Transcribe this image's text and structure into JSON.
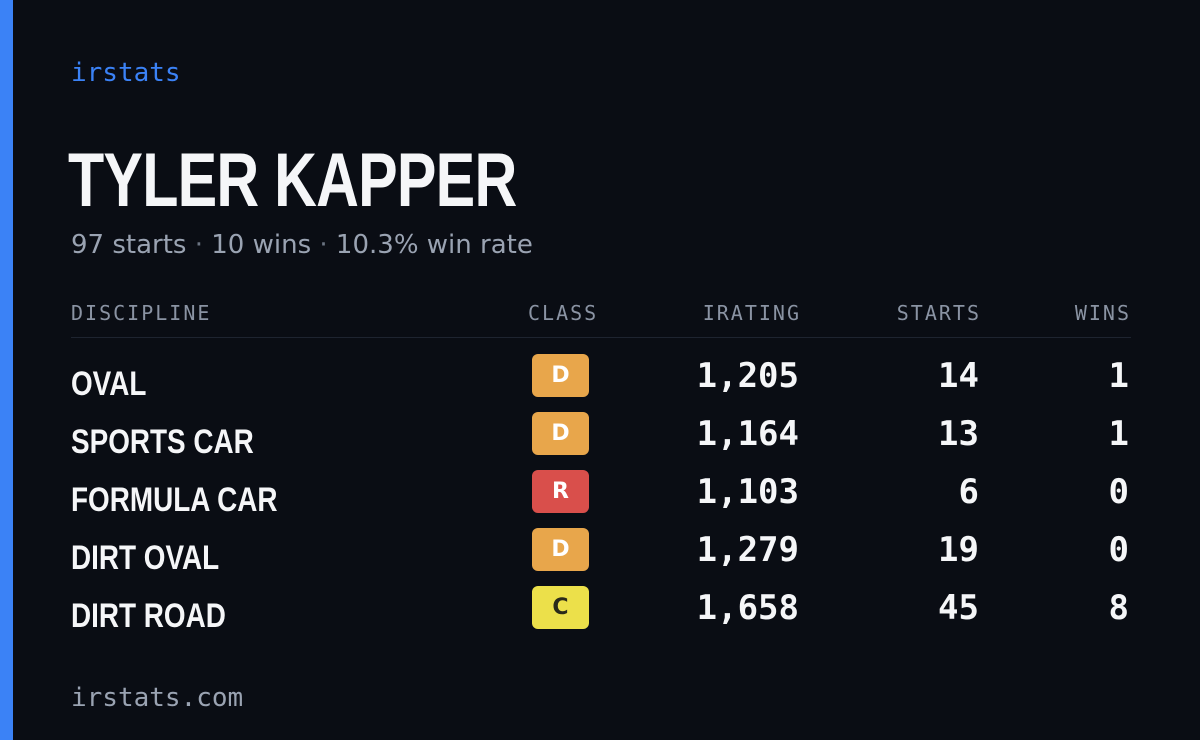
{
  "brand": "irstats",
  "driver": {
    "name": "TYLER KAPPER",
    "starts_summary": "97 starts",
    "wins_summary": "10 wins",
    "win_rate_summary": "10.3% win rate",
    "separator": "·"
  },
  "table": {
    "headers": {
      "discipline": "DISCIPLINE",
      "class": "CLASS",
      "irating": "IRATING",
      "starts": "STARTS",
      "wins": "WINS"
    },
    "rows": [
      {
        "discipline": "OVAL",
        "class": "D",
        "class_color": "#e8a64b",
        "class_text_color": "#ffffff",
        "irating": "1,205",
        "starts": "14",
        "wins": "1"
      },
      {
        "discipline": "SPORTS CAR",
        "class": "D",
        "class_color": "#e8a64b",
        "class_text_color": "#ffffff",
        "irating": "1,164",
        "starts": "13",
        "wins": "1"
      },
      {
        "discipline": "FORMULA CAR",
        "class": "R",
        "class_color": "#d94f4b",
        "class_text_color": "#ffffff",
        "irating": "1,103",
        "starts": "6",
        "wins": "0"
      },
      {
        "discipline": "DIRT OVAL",
        "class": "D",
        "class_color": "#e8a64b",
        "class_text_color": "#ffffff",
        "irating": "1,279",
        "starts": "19",
        "wins": "0"
      },
      {
        "discipline": "DIRT ROAD",
        "class": "C",
        "class_color": "#ece04a",
        "class_text_color": "#2a2a1a",
        "irating": "1,658",
        "starts": "45",
        "wins": "8"
      }
    ]
  },
  "footer": "irstats.com",
  "colors": {
    "accent": "#3b82f6",
    "background": "#0a0d14"
  }
}
